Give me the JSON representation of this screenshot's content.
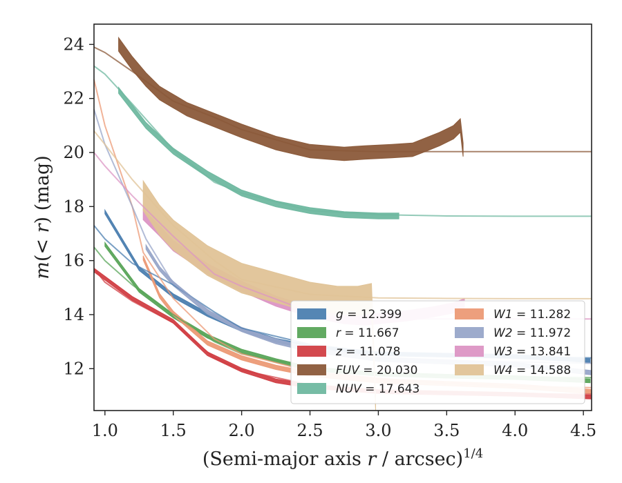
{
  "chart_data": {
    "type": "line",
    "xlabel": "(Semi-major axis r / arcsec)^{1/4}",
    "ylabel": "m(< r) (mag)",
    "xlim": [
      0.92,
      4.56
    ],
    "ylim": [
      24.75,
      10.45
    ],
    "y_inverted": true,
    "xticks": [
      "1.0",
      "1.5",
      "2.0",
      "2.5",
      "3.0",
      "3.5",
      "4.0",
      "4.5"
    ],
    "yticks": [
      "12",
      "14",
      "16",
      "18",
      "20",
      "22",
      "24"
    ],
    "legend_position": "bottom-right",
    "series": [
      {
        "name": "g = 12.399",
        "band": "g",
        "total": "12.399",
        "color": "#4c7fb0",
        "x": [
          1.0,
          1.25,
          1.5,
          1.75,
          2.0,
          2.25,
          2.5,
          3.0,
          3.5,
          4.0,
          4.55
        ],
        "values": [
          17.8,
          15.7,
          14.7,
          14.0,
          13.45,
          13.05,
          12.8,
          12.55,
          12.5,
          12.45,
          12.3
        ],
        "width": 0.14,
        "model_x": [
          0.92,
          1.0,
          1.2,
          1.5,
          1.8,
          2.0,
          2.5,
          3.0,
          3.5,
          4.0,
          4.56
        ],
        "model": [
          17.3,
          16.8,
          15.9,
          15.1,
          14.1,
          13.5,
          12.9,
          12.6,
          12.5,
          12.45,
          12.4
        ]
      },
      {
        "name": "r = 11.667",
        "band": "r",
        "total": "11.667",
        "color": "#5aa55a",
        "x": [
          1.0,
          1.25,
          1.5,
          1.75,
          2.0,
          2.25,
          2.5,
          3.0,
          3.5,
          4.0,
          4.55
        ],
        "values": [
          16.6,
          14.9,
          13.95,
          13.2,
          12.65,
          12.3,
          12.0,
          11.8,
          11.72,
          11.67,
          11.55
        ],
        "width": 0.14,
        "model_x": [
          0.92,
          1.0,
          1.2,
          1.5,
          1.8,
          2.0,
          2.5,
          3.0,
          3.5,
          4.0,
          4.56
        ],
        "model": [
          16.5,
          16.0,
          15.1,
          14.0,
          13.0,
          12.55,
          12.05,
          11.85,
          11.75,
          11.7,
          11.67
        ]
      },
      {
        "name": "z = 11.078",
        "band": "z",
        "total": "11.078",
        "color": "#d13f44",
        "x": [
          0.92,
          1.2,
          1.5,
          1.75,
          2.0,
          2.25,
          2.5,
          3.0,
          3.5,
          4.0,
          4.56
        ],
        "values": [
          15.65,
          14.6,
          13.75,
          12.55,
          11.95,
          11.55,
          11.35,
          11.15,
          11.1,
          11.05,
          10.95
        ],
        "width": 0.14,
        "model_x": [
          0.92,
          1.0,
          1.2,
          1.5,
          1.8,
          2.0,
          2.5,
          3.0,
          3.5,
          4.0,
          4.56
        ],
        "model": [
          15.7,
          15.2,
          14.5,
          13.7,
          12.4,
          11.95,
          11.4,
          11.2,
          11.12,
          11.08,
          11.05
        ]
      },
      {
        "name": "FUV = 20.030",
        "band": "FUV",
        "total": "20.030",
        "color": "#8b5a3a",
        "x": [
          1.1,
          1.2,
          1.3,
          1.4,
          1.5,
          1.6,
          1.75,
          2.0,
          2.25,
          2.5,
          2.75,
          2.9,
          3.1,
          3.25,
          3.35,
          3.45,
          3.55,
          3.6,
          3.62
        ],
        "values": [
          24.0,
          23.3,
          22.7,
          22.2,
          21.9,
          21.6,
          21.3,
          20.8,
          20.35,
          20.05,
          19.95,
          20.0,
          20.05,
          20.1,
          20.3,
          20.5,
          20.75,
          21.0,
          20.1
        ],
        "width": 0.5,
        "model_x": [
          0.92,
          1.0,
          1.2,
          1.5,
          1.8,
          2.0,
          2.5,
          3.0,
          3.6,
          4.0,
          4.56
        ],
        "model": [
          23.9,
          23.7,
          23.0,
          21.9,
          21.3,
          20.85,
          20.1,
          20.03,
          20.03,
          20.03,
          20.03
        ]
      },
      {
        "name": "NUV = 17.643",
        "band": "NUV",
        "total": "17.643",
        "color": "#6fb8a0",
        "x": [
          1.1,
          1.3,
          1.5,
          1.75,
          2.0,
          2.25,
          2.5,
          2.75,
          3.0,
          3.15
        ],
        "values": [
          22.3,
          21.0,
          20.05,
          19.2,
          18.5,
          18.1,
          17.85,
          17.7,
          17.65,
          17.65
        ],
        "width": 0.22,
        "model_x": [
          0.92,
          1.0,
          1.2,
          1.5,
          1.8,
          2.0,
          2.5,
          3.0,
          3.5,
          4.0,
          4.56
        ],
        "model": [
          23.2,
          22.9,
          21.8,
          20.1,
          18.9,
          18.5,
          17.85,
          17.7,
          17.65,
          17.64,
          17.64
        ]
      },
      {
        "name": "W1 = 11.282",
        "band": "W1",
        "total": "11.282",
        "color": "#ec9a76",
        "x": [
          1.28,
          1.4,
          1.5,
          1.75,
          2.0,
          2.25,
          2.5,
          3.0,
          3.5,
          4.0,
          4.56
        ],
        "values": [
          16.1,
          14.7,
          14.05,
          12.95,
          12.4,
          12.05,
          11.8,
          11.55,
          11.45,
          11.35,
          11.15
        ],
        "width": 0.16,
        "model_x": [
          0.92,
          1.0,
          1.2,
          1.28,
          1.5,
          1.8,
          2.0,
          2.5,
          3.0,
          3.5,
          4.0,
          4.56
        ],
        "model": [
          22.7,
          21.0,
          18.0,
          16.3,
          14.6,
          13.1,
          12.55,
          11.9,
          11.65,
          11.45,
          11.35,
          11.3
        ]
      },
      {
        "name": "W2 = 11.972",
        "band": "W2",
        "total": "11.972",
        "color": "#98a6c9",
        "x": [
          1.3,
          1.4,
          1.5,
          1.75,
          2.0,
          2.25,
          2.5,
          3.0,
          3.5,
          4.0,
          4.56
        ],
        "values": [
          16.5,
          15.7,
          15.15,
          14.1,
          13.45,
          13.0,
          12.7,
          12.35,
          12.25,
          12.15,
          11.85
        ],
        "width": 0.16,
        "model_x": [
          0.92,
          1.0,
          1.2,
          1.3,
          1.5,
          1.8,
          2.0,
          2.5,
          3.0,
          3.5,
          4.0,
          4.56
        ],
        "model": [
          21.6,
          20.3,
          18.0,
          16.8,
          15.15,
          14.0,
          13.45,
          12.75,
          12.4,
          12.3,
          12.25,
          12.2
        ]
      },
      {
        "name": "W3 = 13.841",
        "band": "W3",
        "total": "13.841",
        "color": "#dc95c4",
        "x": [
          1.28,
          1.4,
          1.5,
          1.75,
          2.0,
          2.25,
          2.5,
          2.75,
          2.9,
          3.0,
          3.2,
          3.4,
          3.55,
          3.63
        ],
        "values": [
          17.7,
          17.1,
          16.55,
          15.7,
          15.05,
          14.5,
          14.1,
          13.85,
          13.8,
          13.85,
          13.95,
          14.1,
          14.25,
          14.4
        ],
        "width": 0.38,
        "model_x": [
          0.92,
          1.0,
          1.2,
          1.5,
          1.8,
          2.0,
          2.5,
          3.0,
          3.5,
          4.0,
          4.56
        ],
        "model": [
          20.0,
          19.5,
          18.4,
          16.9,
          15.5,
          15.05,
          14.1,
          13.84,
          13.84,
          13.84,
          13.84
        ]
      },
      {
        "name": "W4 = 14.588",
        "band": "W4",
        "total": "14.588",
        "color": "#e0c397",
        "x": [
          1.28,
          1.4,
          1.5,
          1.75,
          2.0,
          2.25,
          2.5,
          2.7,
          2.85,
          2.95,
          2.98
        ],
        "values": [
          18.4,
          17.5,
          16.95,
          16.0,
          15.35,
          15.0,
          14.65,
          14.5,
          14.5,
          14.6,
          10.45
        ],
        "width": 1.1,
        "model_x": [
          0.92,
          1.0,
          1.2,
          1.5,
          1.8,
          2.0,
          2.5,
          3.0,
          3.5,
          4.0,
          4.56
        ],
        "model": [
          20.8,
          20.3,
          19.0,
          17.3,
          16.0,
          15.3,
          14.75,
          14.62,
          14.6,
          14.59,
          14.59
        ]
      }
    ]
  }
}
